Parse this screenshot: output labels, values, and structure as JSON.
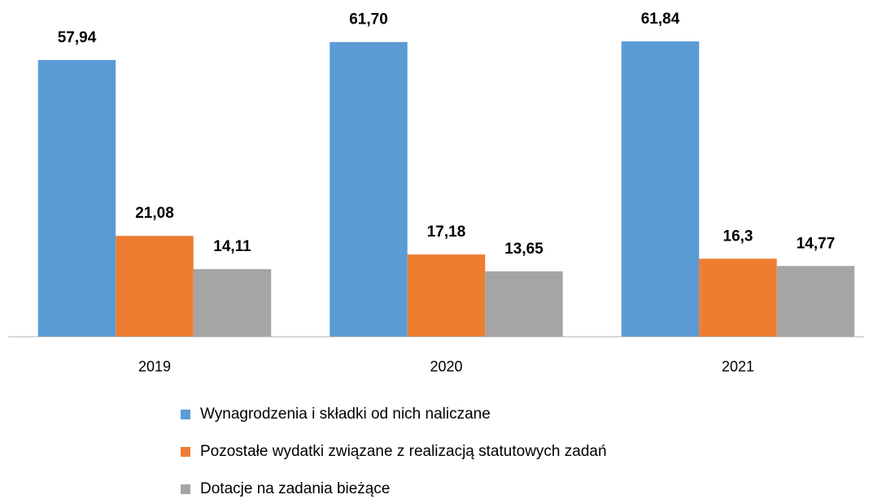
{
  "chart_data": {
    "type": "bar",
    "categories": [
      "2019",
      "2020",
      "2021"
    ],
    "series": [
      {
        "name": "Wynagrodzenia i składki od nich naliczane",
        "color": "#5b9bd5",
        "values": [
          57.94,
          61.7,
          61.84
        ],
        "value_labels": [
          "57,94",
          "61,70",
          "61,84"
        ]
      },
      {
        "name": "Pozostałe wydatki związane z realizacją statutowych zadań",
        "color": "#ed7d31",
        "values": [
          21.08,
          17.18,
          16.3
        ],
        "value_labels": [
          "21,08",
          "17,18",
          "16,3"
        ]
      },
      {
        "name": "Dotacje na zadania bieżące",
        "color": "#a5a5a5",
        "values": [
          14.11,
          13.65,
          14.77
        ],
        "value_labels": [
          "14,11",
          "13,65",
          "14,77"
        ]
      }
    ],
    "ylim": [
      0,
      70
    ],
    "legend": "bottom"
  }
}
